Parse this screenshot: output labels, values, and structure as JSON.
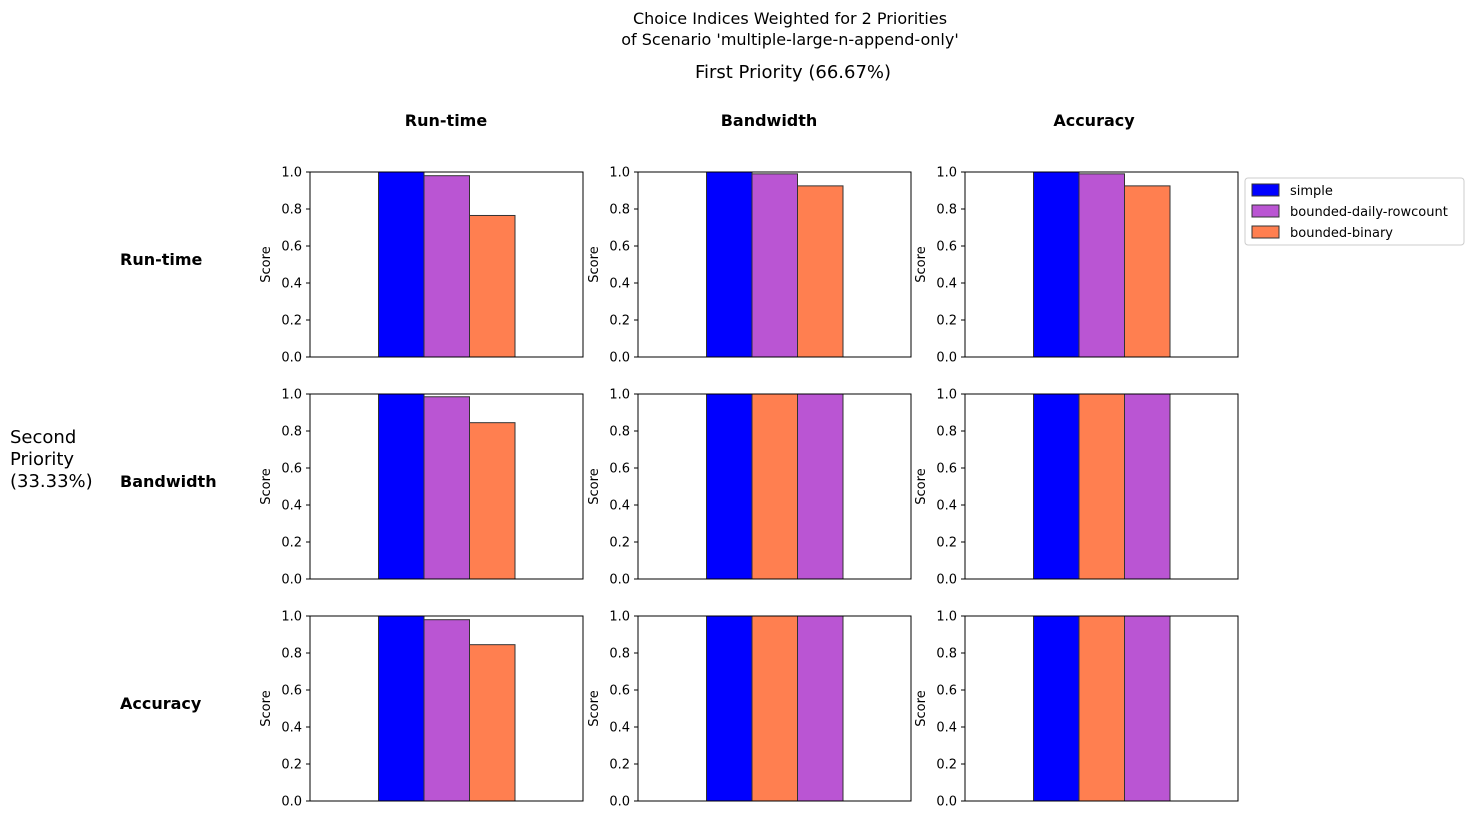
{
  "figure": {
    "title_lines": [
      "Choice Indices Weighted for 2 Priorities",
      "of Scenario 'multiple-large-n-append-only'"
    ],
    "first_priority_label": "First Priority (66.67%)",
    "second_priority_lines": [
      "Second",
      "Priority",
      "(33.33%)"
    ],
    "column_headers": [
      "Run-time",
      "Bandwidth",
      "Accuracy"
    ],
    "row_headers": [
      "Run-time",
      "Bandwidth",
      "Accuracy"
    ]
  },
  "legend": {
    "placement": "right of top-right subplot",
    "items": [
      {
        "name": "simple",
        "color": "#0000ff"
      },
      {
        "name": "bounded-daily-rowcount",
        "color": "#ba55d3"
      },
      {
        "name": "bounded-binary",
        "color": "#ff7f50"
      }
    ]
  },
  "colors": {
    "simple": "#0000ff",
    "bounded-daily-rowcount": "#ba55d3",
    "bounded-binary": "#ff7f50",
    "bar_edge": "#333333"
  },
  "chart_data": [
    {
      "type": "bar",
      "row": "Run-time",
      "col": "Run-time",
      "ylabel": "Score",
      "ylim": [
        0,
        1
      ],
      "yticks": [
        "0.0",
        "0.2",
        "0.4",
        "0.6",
        "0.8",
        "1.0"
      ],
      "series": [
        {
          "name": "simple",
          "value": 1.0
        },
        {
          "name": "bounded-daily-rowcount",
          "value": 0.98
        },
        {
          "name": "bounded-binary",
          "value": 0.765
        }
      ]
    },
    {
      "type": "bar",
      "row": "Run-time",
      "col": "Bandwidth",
      "ylabel": "Score",
      "ylim": [
        0,
        1
      ],
      "yticks": [
        "0.0",
        "0.2",
        "0.4",
        "0.6",
        "0.8",
        "1.0"
      ],
      "series": [
        {
          "name": "simple",
          "value": 1.0
        },
        {
          "name": "bounded-daily-rowcount",
          "value": 0.99
        },
        {
          "name": "bounded-binary",
          "value": 0.925
        }
      ]
    },
    {
      "type": "bar",
      "row": "Run-time",
      "col": "Accuracy",
      "ylabel": "Score",
      "ylim": [
        0,
        1
      ],
      "yticks": [
        "0.0",
        "0.2",
        "0.4",
        "0.6",
        "0.8",
        "1.0"
      ],
      "series": [
        {
          "name": "simple",
          "value": 1.0
        },
        {
          "name": "bounded-daily-rowcount",
          "value": 0.99
        },
        {
          "name": "bounded-binary",
          "value": 0.925
        }
      ]
    },
    {
      "type": "bar",
      "row": "Bandwidth",
      "col": "Run-time",
      "ylabel": "Score",
      "ylim": [
        0,
        1
      ],
      "yticks": [
        "0.0",
        "0.2",
        "0.4",
        "0.6",
        "0.8",
        "1.0"
      ],
      "series": [
        {
          "name": "simple",
          "value": 1.0
        },
        {
          "name": "bounded-daily-rowcount",
          "value": 0.985
        },
        {
          "name": "bounded-binary",
          "value": 0.845
        }
      ]
    },
    {
      "type": "bar",
      "row": "Bandwidth",
      "col": "Bandwidth",
      "ylabel": "Score",
      "ylim": [
        0,
        1
      ],
      "yticks": [
        "0.0",
        "0.2",
        "0.4",
        "0.6",
        "0.8",
        "1.0"
      ],
      "series": [
        {
          "name": "simple",
          "value": 1.0
        },
        {
          "name": "bounded-binary",
          "value": 1.0
        },
        {
          "name": "bounded-daily-rowcount",
          "value": 1.0
        }
      ]
    },
    {
      "type": "bar",
      "row": "Bandwidth",
      "col": "Accuracy",
      "ylabel": "Score",
      "ylim": [
        0,
        1
      ],
      "yticks": [
        "0.0",
        "0.2",
        "0.4",
        "0.6",
        "0.8",
        "1.0"
      ],
      "series": [
        {
          "name": "simple",
          "value": 1.0
        },
        {
          "name": "bounded-binary",
          "value": 1.0
        },
        {
          "name": "bounded-daily-rowcount",
          "value": 1.0
        }
      ]
    },
    {
      "type": "bar",
      "row": "Accuracy",
      "col": "Run-time",
      "ylabel": "Score",
      "ylim": [
        0,
        1
      ],
      "yticks": [
        "0.0",
        "0.2",
        "0.4",
        "0.6",
        "0.8",
        "1.0"
      ],
      "series": [
        {
          "name": "simple",
          "value": 1.0
        },
        {
          "name": "bounded-daily-rowcount",
          "value": 0.98
        },
        {
          "name": "bounded-binary",
          "value": 0.845
        }
      ]
    },
    {
      "type": "bar",
      "row": "Accuracy",
      "col": "Bandwidth",
      "ylabel": "Score",
      "ylim": [
        0,
        1
      ],
      "yticks": [
        "0.0",
        "0.2",
        "0.4",
        "0.6",
        "0.8",
        "1.0"
      ],
      "series": [
        {
          "name": "simple",
          "value": 1.0
        },
        {
          "name": "bounded-binary",
          "value": 1.0
        },
        {
          "name": "bounded-daily-rowcount",
          "value": 1.0
        }
      ]
    },
    {
      "type": "bar",
      "row": "Accuracy",
      "col": "Accuracy",
      "ylabel": "Score",
      "ylim": [
        0,
        1
      ],
      "yticks": [
        "0.0",
        "0.2",
        "0.4",
        "0.6",
        "0.8",
        "1.0"
      ],
      "series": [
        {
          "name": "simple",
          "value": 1.0
        },
        {
          "name": "bounded-binary",
          "value": 1.0
        },
        {
          "name": "bounded-daily-rowcount",
          "value": 1.0
        }
      ]
    }
  ]
}
